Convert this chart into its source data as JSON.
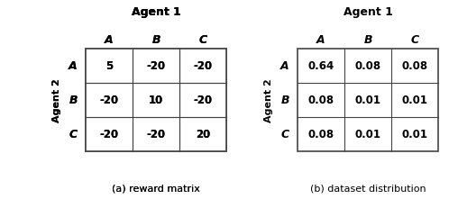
{
  "left_title": "Agent 1",
  "left_col_labels": [
    "A",
    "B",
    "C"
  ],
  "left_row_labels": [
    "A",
    "B",
    "C"
  ],
  "left_agent2_label": "Agent 2",
  "left_data": [
    [
      "5",
      "-20",
      "-20"
    ],
    [
      "-20",
      "10",
      "-20"
    ],
    [
      "-20",
      "-20",
      "20"
    ]
  ],
  "right_title": "Agent 1",
  "right_col_labels": [
    "A",
    "B",
    "C"
  ],
  "right_row_labels": [
    "A",
    "B",
    "C"
  ],
  "right_agent2_label": "Agent 2",
  "right_data": [
    [
      "0.64",
      "0.08",
      "0.08"
    ],
    [
      "0.08",
      "0.01",
      "0.01"
    ],
    [
      "0.08",
      "0.01",
      "0.01"
    ]
  ],
  "left_caption": "(a) reward matrix",
  "right_caption": "(b) dataset distribution",
  "bg_color": "#ffffff",
  "cell_bg": "#ffffff",
  "border_color": "#444444",
  "text_color": "#000000"
}
